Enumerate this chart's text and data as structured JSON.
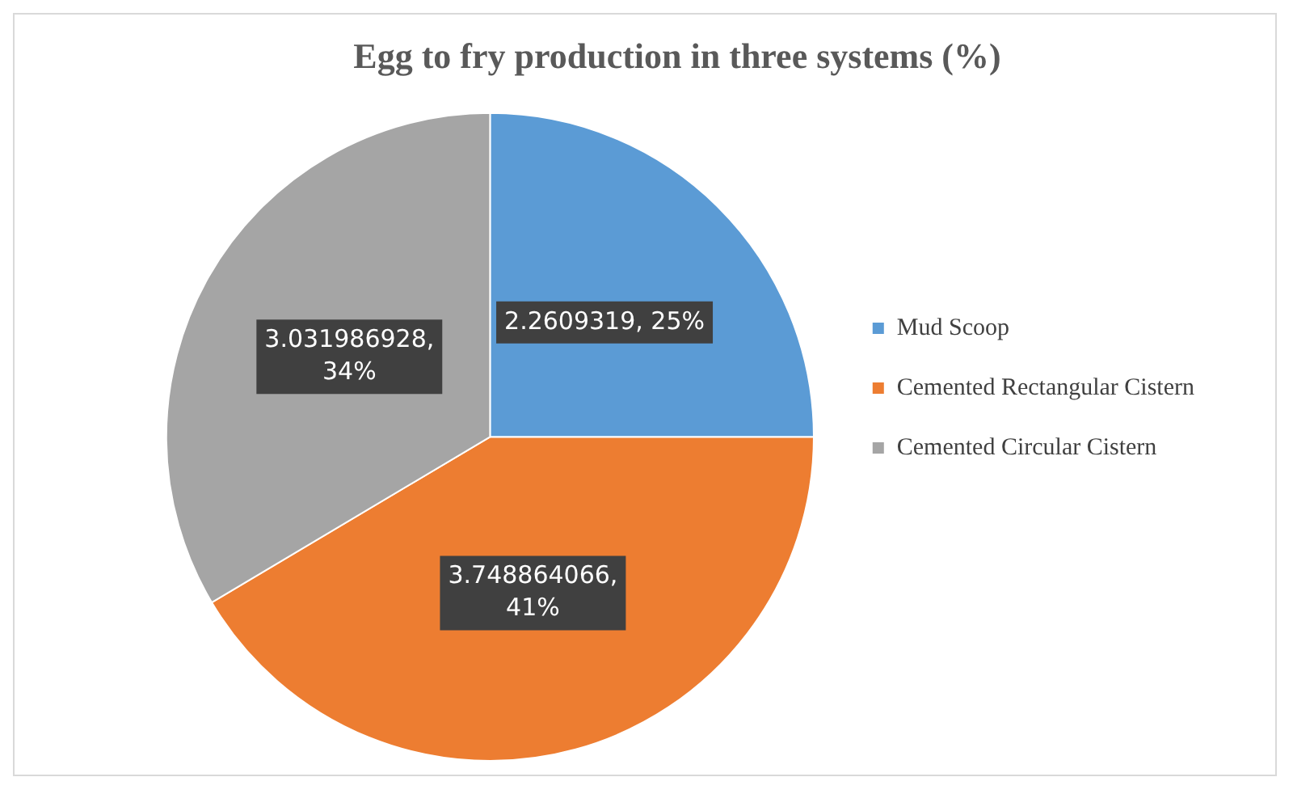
{
  "chart_data": {
    "type": "pie",
    "title": "Egg to fry production in three systems (%)",
    "categories": [
      "Mud Scoop",
      "Cemented Rectangular Cistern",
      "Cemented Circular Cistern"
    ],
    "values": [
      2.2609319,
      3.748864066,
      3.031986928
    ],
    "colors": [
      "#5b9bd5",
      "#ed7d31",
      "#a5a5a5"
    ],
    "value_labels": [
      "2.2609319, 25%",
      "3.748864066, 41%",
      "3.031986928, 34%"
    ],
    "legend": "right"
  }
}
